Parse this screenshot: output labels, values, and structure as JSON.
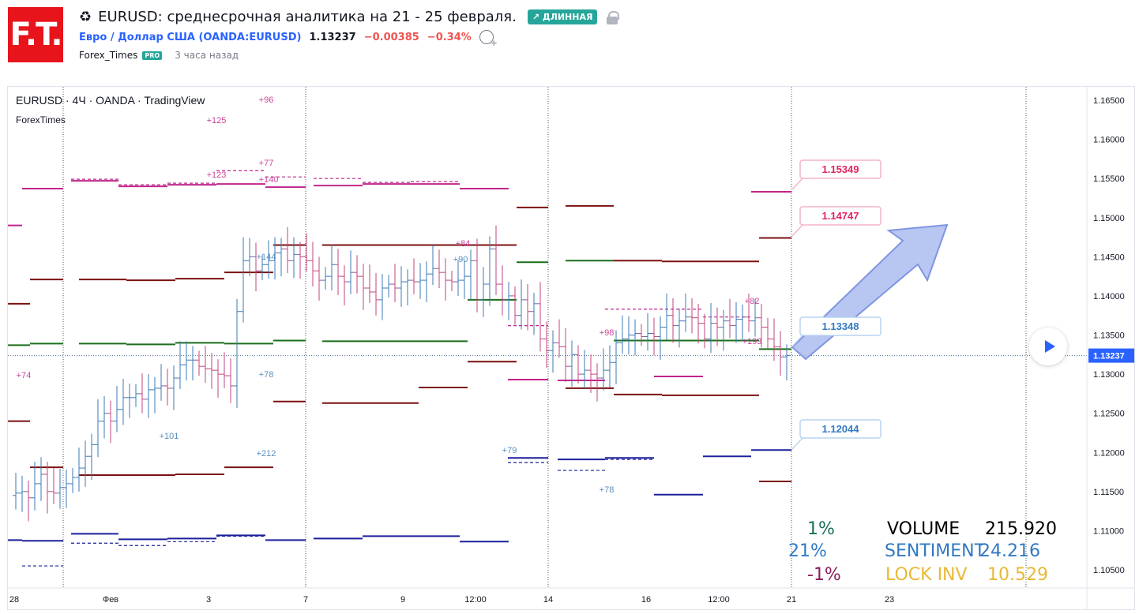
{
  "header": {
    "logo_text": "F.T.",
    "title_icon": "♻",
    "title": "EURUSD: среднесрочная аналитика на 21 - 25 февраля.",
    "badge": "↗ ДЛИННАЯ",
    "symbol_link": "Евро / Доллар США (OANDA:EURUSD)",
    "price": "1.13237",
    "change": "−0.00385",
    "change_pct": "−0.34%",
    "author": "Forex_Times",
    "author_badge": "PRO",
    "time_ago": "3 часа назад"
  },
  "chart": {
    "legend_line1": "EURUSD · 4Ч · OANDA · TradingView",
    "legend_line2": "ForexTimes",
    "current_price_label": "1.13237"
  },
  "stats": {
    "pct_top": "1%",
    "pct_mid": "21%",
    "pct_bot": "-1%",
    "volume_label": "VOLUME",
    "volume_value": "215.920",
    "sentiment_label": "SENTIMENT",
    "sentiment_value": "24.216",
    "lock_label": "LOCK INV",
    "lock_value": "10.529"
  },
  "colors": {
    "up": "#3c7ab5",
    "down": "#c2447f",
    "magenta": "#c0258a",
    "maroon": "#7b1010",
    "green": "#1a6e1a",
    "navy": "#1b1f9b",
    "label_pink": "#e0245e",
    "label_blue": "#3179c2",
    "arrow_fill": "#a6b8ef",
    "arrow_stroke": "#7f96e0",
    "sentiment_blue": "#3179c2",
    "lock_gold": "#e8b936"
  },
  "chart_data": {
    "type": "candlestick",
    "y_axis": {
      "min": 1.1025,
      "max": 1.1675,
      "ticks": [
        "1.16500",
        "1.16000",
        "1.15500",
        "1.15000",
        "1.14500",
        "1.14000",
        "1.13500",
        "1.13000",
        "1.12500",
        "1.12000",
        "1.11500",
        "1.11000",
        "1.10500"
      ]
    },
    "x_axis_labels": [
      "28",
      "Фев",
      "3",
      "7",
      "9",
      "12:00",
      "14",
      "16",
      "12:00",
      "21",
      "23"
    ],
    "current_price": 1.13237,
    "price_labels": [
      {
        "value": "1.15349",
        "kind": "resistance"
      },
      {
        "value": "1.14747",
        "kind": "resistance"
      },
      {
        "value": "1.13348",
        "kind": "pivot"
      },
      {
        "value": "1.12044",
        "kind": "support"
      }
    ],
    "annotations": [
      "+96",
      "+125",
      "+77",
      "+123",
      "+140",
      "+144",
      "+84",
      "+90",
      "+82",
      "+193",
      "+98",
      "+74",
      "+78",
      "+101",
      "+212",
      "+79",
      "+78"
    ],
    "forecast_arrow": {
      "from": 1.1335,
      "to": 1.149,
      "direction": "up"
    }
  }
}
